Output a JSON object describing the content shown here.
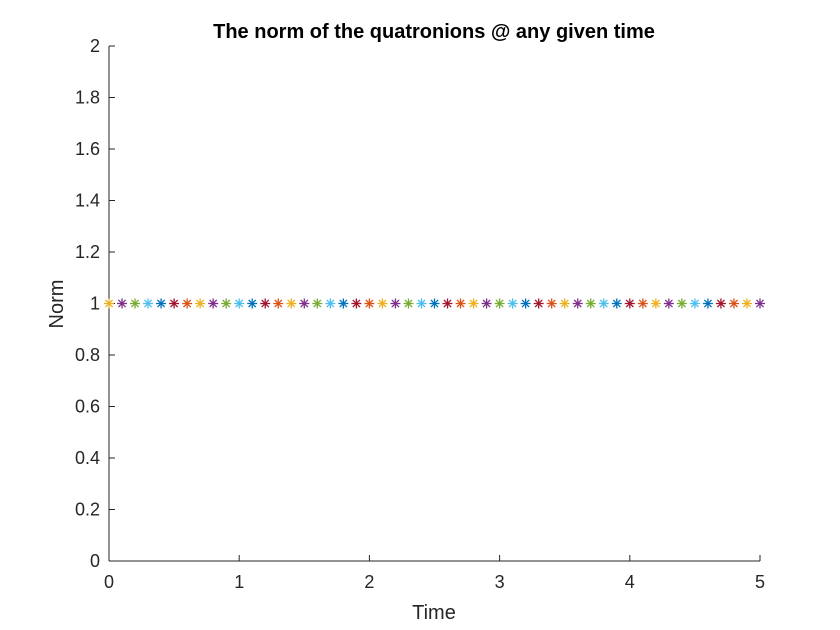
{
  "chart_data": {
    "type": "scatter",
    "title": "The norm of the quatronions @ any given time",
    "xlabel": "Time",
    "ylabel": "Norm",
    "xlim": [
      0,
      5
    ],
    "ylim": [
      0,
      2
    ],
    "xticks": [
      "0",
      "1",
      "2",
      "3",
      "4",
      "5"
    ],
    "yticks": [
      "0",
      "0.2",
      "0.4",
      "0.6",
      "0.8",
      "1",
      "1.2",
      "1.4",
      "1.6",
      "1.8",
      "2"
    ],
    "grid": false,
    "legend": "none",
    "marker": "asterisk",
    "series_colors": [
      "#EDB120",
      "#7E2F8E",
      "#77AC30",
      "#4DBEEE",
      "#0072BD",
      "#A2142F",
      "#D95319"
    ],
    "x": [
      0,
      0.1,
      0.2,
      0.3,
      0.4,
      0.5,
      0.6,
      0.7,
      0.8,
      0.9,
      1.0,
      1.1,
      1.2,
      1.3,
      1.4,
      1.5,
      1.6,
      1.7,
      1.8,
      1.9,
      2.0,
      2.1,
      2.2,
      2.3,
      2.4,
      2.5,
      2.6,
      2.7,
      2.8,
      2.9,
      3.0,
      3.1,
      3.2,
      3.3,
      3.4,
      3.5,
      3.6,
      3.7,
      3.8,
      3.9,
      4.0,
      4.1,
      4.2,
      4.3,
      4.4,
      4.5,
      4.6,
      4.7,
      4.8,
      4.9,
      5.0
    ],
    "y": [
      1,
      1,
      1,
      1,
      1,
      1,
      1,
      1,
      1,
      1,
      1,
      1,
      1,
      1,
      1,
      1,
      1,
      1,
      1,
      1,
      1,
      1,
      1,
      1,
      1,
      1,
      1,
      1,
      1,
      1,
      1,
      1,
      1,
      1,
      1,
      1,
      1,
      1,
      1,
      1,
      1,
      1,
      1,
      1,
      1,
      1,
      1,
      1,
      1,
      1,
      1
    ]
  }
}
